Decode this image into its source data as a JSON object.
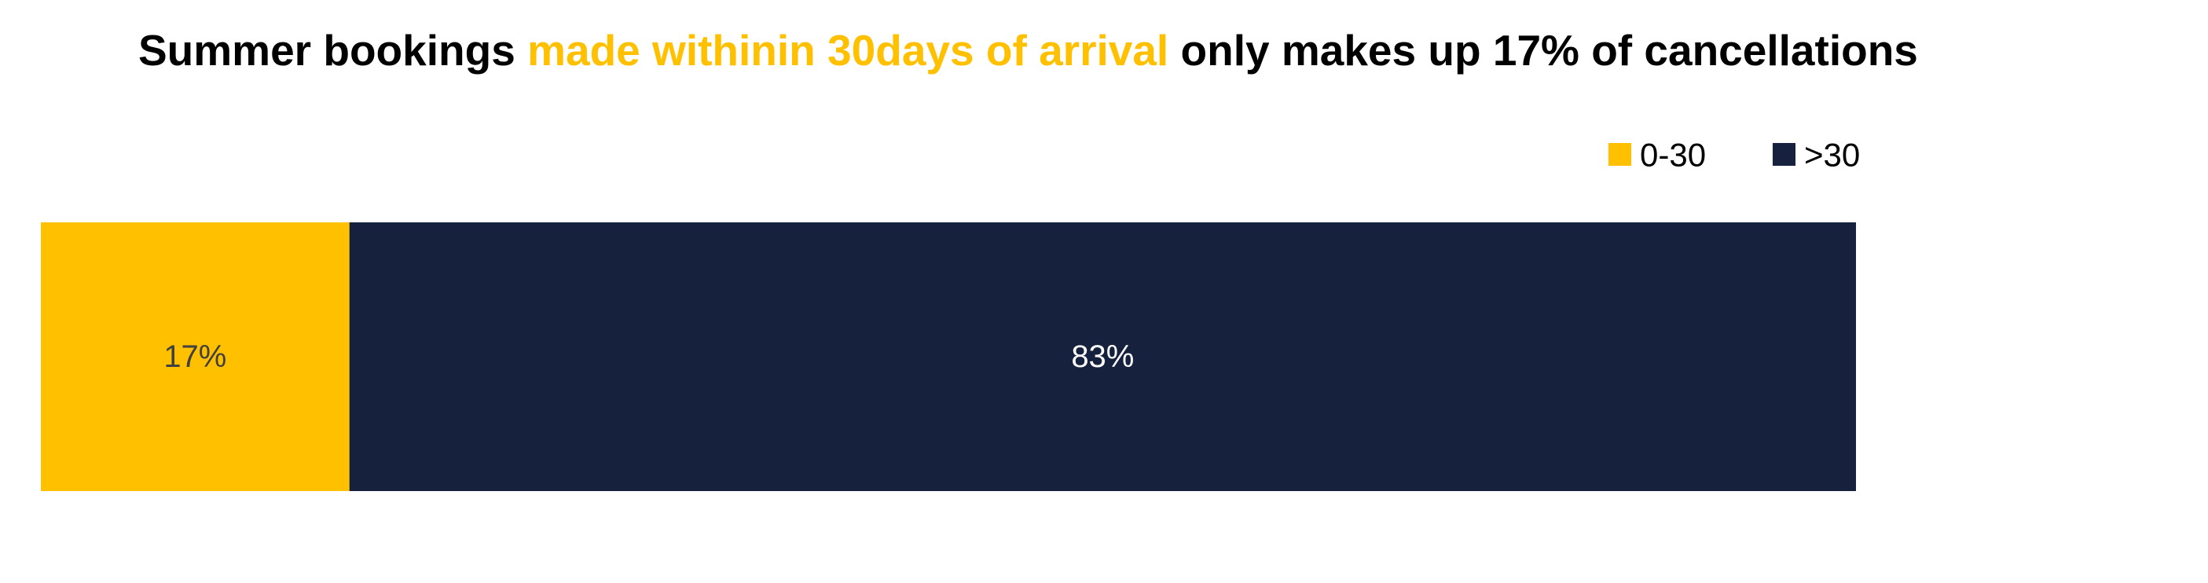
{
  "colors": {
    "highlight": "#FFC000",
    "dark_bar": "#16213E",
    "title_text": "#000000",
    "label_light": "#FFFFFF",
    "label_dark": "#404040",
    "legend_text": "#000000"
  },
  "chart_data": {
    "type": "bar",
    "orientation": "horizontal",
    "stacked": true,
    "title_parts": [
      {
        "text": "Summer bookings ",
        "highlight": false
      },
      {
        "text": "made withinin 30days of arrival",
        "highlight": true
      },
      {
        "text": " only makes up 17% of cancellations",
        "highlight": false
      }
    ],
    "xlim": [
      0,
      100
    ],
    "grid": false,
    "legend_position": "top-right",
    "series": [
      {
        "name": "0-30",
        "value": 17,
        "label": "17%",
        "color": "#FFC000"
      },
      {
        "name": ">30",
        "value": 83,
        "label": "83%",
        "color": "#16213E"
      }
    ]
  }
}
